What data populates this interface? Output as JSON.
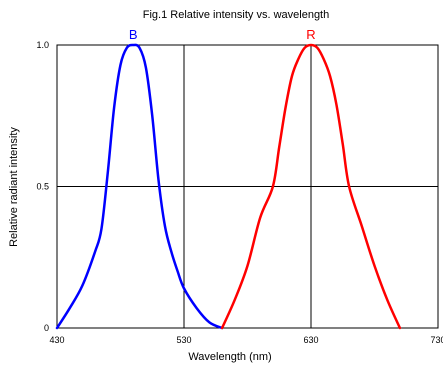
{
  "chart_data": {
    "type": "line",
    "title": "Fig.1 Relative intensity vs. wavelength",
    "xlabel": "Wavelength (nm)",
    "ylabel": "Relative radiant intensity",
    "xlim": [
      430,
      730
    ],
    "ylim": [
      0,
      1.0
    ],
    "x_ticks": [
      "430",
      "530",
      "630",
      "730"
    ],
    "y_ticks": [
      "0",
      "0.5",
      "1.0"
    ],
    "grid": true,
    "series": [
      {
        "name": "B",
        "color": "#0000ff",
        "x": [
          430,
          440,
          450,
          460,
          465,
          470,
          475,
          480,
          485,
          490,
          495,
          500,
          505,
          510,
          515,
          520,
          525,
          530,
          540,
          550,
          560
        ],
        "y": [
          0.0,
          0.07,
          0.15,
          0.27,
          0.35,
          0.55,
          0.78,
          0.93,
          0.99,
          1.0,
          0.99,
          0.92,
          0.75,
          0.52,
          0.36,
          0.27,
          0.2,
          0.14,
          0.07,
          0.02,
          0.0
        ]
      },
      {
        "name": "R",
        "color": "#ff0000",
        "x": [
          560,
          570,
          580,
          590,
          600,
          605,
          610,
          615,
          620,
          625,
          630,
          635,
          640,
          645,
          650,
          655,
          660,
          670,
          680,
          690,
          700
        ],
        "y": [
          0.0,
          0.1,
          0.22,
          0.39,
          0.5,
          0.64,
          0.78,
          0.89,
          0.95,
          0.99,
          1.0,
          0.99,
          0.95,
          0.89,
          0.79,
          0.65,
          0.5,
          0.36,
          0.22,
          0.1,
          0.0
        ]
      }
    ]
  }
}
